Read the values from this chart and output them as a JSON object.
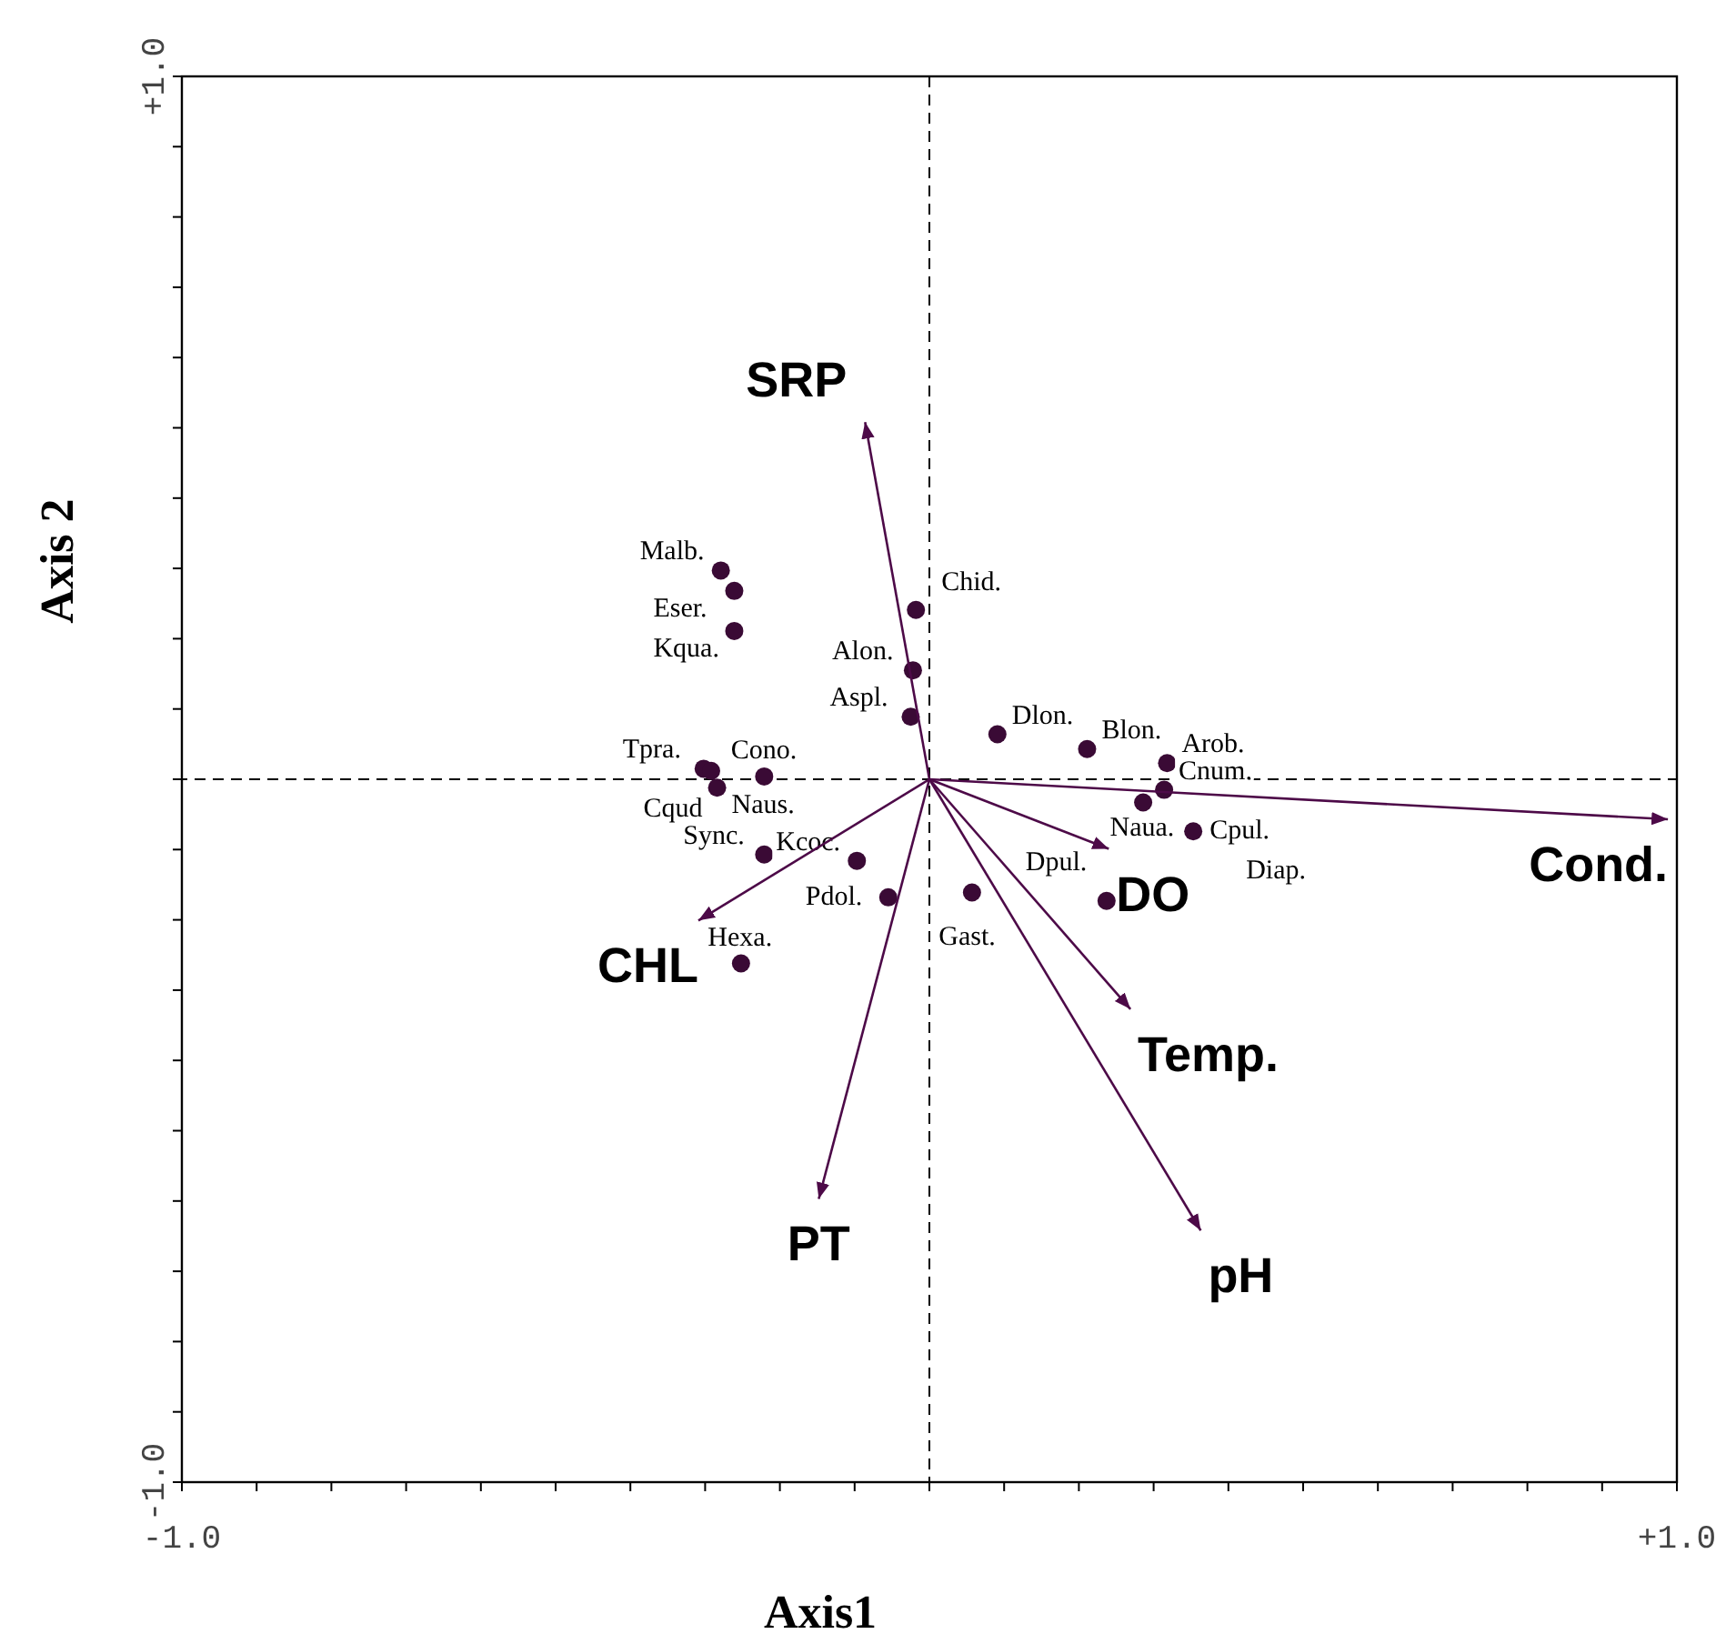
{
  "chart_data": {
    "type": "scatter",
    "xlabel": "Axis1",
    "ylabel": "Axis 2",
    "xlim": [
      -1,
      1
    ],
    "ylim": [
      -1,
      1
    ],
    "xticks": [
      {
        "value": -1,
        "label": "-1.0"
      },
      {
        "value": -0.9,
        "label": null
      },
      {
        "value": -0.8,
        "label": null
      },
      {
        "value": -0.7,
        "label": null
      },
      {
        "value": -0.6,
        "label": null
      },
      {
        "value": -0.5,
        "label": null
      },
      {
        "value": -0.4,
        "label": null
      },
      {
        "value": -0.3,
        "label": null
      },
      {
        "value": -0.2,
        "label": null
      },
      {
        "value": -0.1,
        "label": null
      },
      {
        "value": 0,
        "label": null
      },
      {
        "value": 0.1,
        "label": null
      },
      {
        "value": 0.2,
        "label": null
      },
      {
        "value": 0.3,
        "label": null
      },
      {
        "value": 0.4,
        "label": null
      },
      {
        "value": 0.5,
        "label": null
      },
      {
        "value": 0.6,
        "label": null
      },
      {
        "value": 0.7,
        "label": null
      },
      {
        "value": 0.8,
        "label": null
      },
      {
        "value": 0.9,
        "label": null
      },
      {
        "value": 1,
        "label": "+1.0"
      }
    ],
    "yticks": [
      {
        "value": -1,
        "label": "-1.0"
      },
      {
        "value": -0.9,
        "label": null
      },
      {
        "value": -0.8,
        "label": null
      },
      {
        "value": -0.7,
        "label": null
      },
      {
        "value": -0.6,
        "label": null
      },
      {
        "value": -0.5,
        "label": null
      },
      {
        "value": -0.4,
        "label": null
      },
      {
        "value": -0.3,
        "label": null
      },
      {
        "value": -0.2,
        "label": null
      },
      {
        "value": -0.1,
        "label": null
      },
      {
        "value": 0,
        "label": null
      },
      {
        "value": 0.1,
        "label": null
      },
      {
        "value": 0.2,
        "label": null
      },
      {
        "value": 0.3,
        "label": null
      },
      {
        "value": 0.4,
        "label": null
      },
      {
        "value": 0.5,
        "label": null
      },
      {
        "value": 0.6,
        "label": null
      },
      {
        "value": 0.7,
        "label": null
      },
      {
        "value": 0.8,
        "label": null
      },
      {
        "value": 0.9,
        "label": null
      },
      {
        "value": 1,
        "label": "+1.0"
      }
    ],
    "marker": "circle",
    "ref_lines": [
      {
        "axis": "x",
        "value": 0,
        "line_style": "dashed",
        "color": "#000000"
      },
      {
        "axis": "y",
        "value": 0,
        "line_style": "dashed",
        "color": "#000000"
      }
    ],
    "series": [
      {
        "color": "#3a0a35",
        "x": [
          -0.279,
          -0.261,
          -0.261,
          -0.018,
          -0.022,
          -0.025,
          0.091,
          0.211,
          0.318,
          0.314,
          0.286,
          0.353,
          0.237,
          0.057,
          -0.055,
          -0.097,
          -0.221,
          -0.221,
          -0.302,
          -0.292,
          -0.284,
          -0.252
        ],
        "values": [
          0.297,
          0.268,
          0.211,
          0.241,
          0.155,
          0.089,
          0.064,
          0.043,
          0.023,
          -0.015,
          -0.033,
          -0.074,
          -0.173,
          -0.161,
          -0.168,
          -0.116,
          -0.107,
          0.004,
          0.015,
          0.012,
          -0.012,
          -0.262
        ],
        "value_labels": [
          "Malb.",
          "Eser.",
          "Kqua.",
          "Chid.",
          "Alon.",
          "Aspl.",
          "Dlon.",
          "Blon.",
          "Arob.",
          "Cnum.",
          "Naua.",
          "Cpul.",
          "Dpul.",
          "Gast.",
          "Pdol.",
          "Kcoc.",
          "Sync.",
          "Cono.",
          "Tpra.",
          "Cqud",
          "Naus.",
          "Hexa."
        ]
      },
      {
        "type": "line",
        "name": "SRP",
        "color": "#4d0a48",
        "marker": "none",
        "x": [
          0,
          -0.086
        ],
        "values": [
          0,
          0.508
        ]
      },
      {
        "type": "line",
        "name": "Cond.",
        "color": "#4d0a48",
        "marker": "none",
        "x": [
          0,
          0.988
        ],
        "values": [
          0,
          -0.057
        ]
      },
      {
        "type": "line",
        "name": "DO",
        "color": "#4d0a48",
        "marker": "none",
        "x": [
          0,
          0.24
        ],
        "values": [
          0,
          -0.099
        ]
      },
      {
        "type": "line",
        "name": "Temp.",
        "color": "#4d0a48",
        "marker": "none",
        "x": [
          0,
          0.269
        ],
        "values": [
          0,
          -0.327
        ]
      },
      {
        "type": "line",
        "name": "pH",
        "color": "#4d0a48",
        "marker": "none",
        "x": [
          0,
          0.363
        ],
        "values": [
          0,
          -0.642
        ]
      },
      {
        "type": "line",
        "name": "PT",
        "color": "#4d0a48",
        "marker": "none",
        "x": [
          0,
          -0.148
        ],
        "values": [
          0,
          -0.597
        ]
      },
      {
        "type": "line",
        "name": "CHL",
        "color": "#4d0a48",
        "marker": "none",
        "x": [
          0,
          -0.309
        ],
        "values": [
          0,
          -0.201
        ]
      }
    ],
    "annotations": [
      "Diap."
    ]
  }
}
